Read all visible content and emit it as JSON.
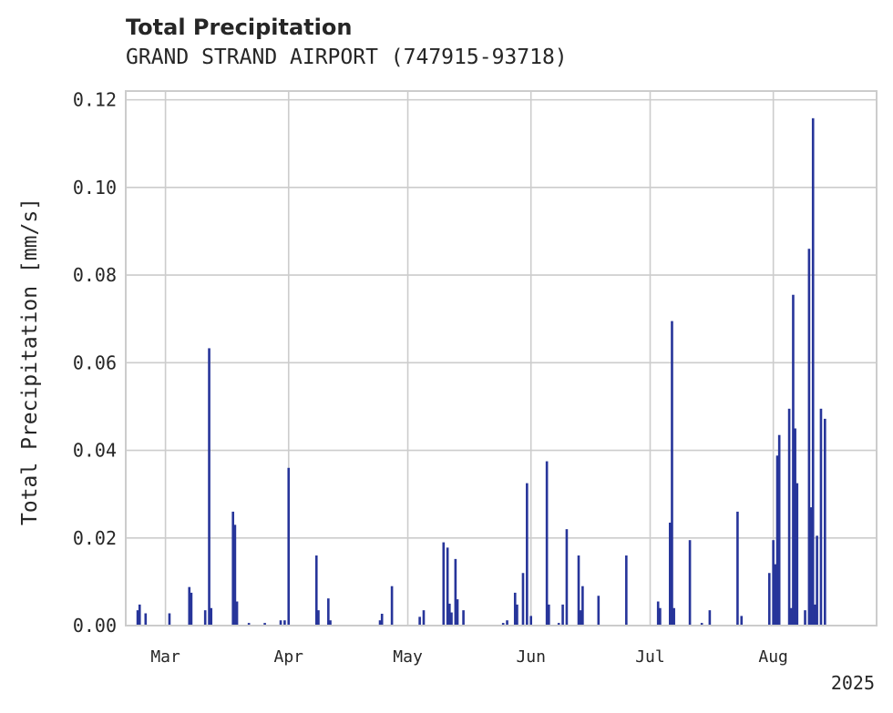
{
  "title": "Total Precipitation",
  "subtitle": "GRAND STRAND AIRPORT (747915-93718)",
  "chart_data": {
    "type": "bar",
    "title": "Total Precipitation",
    "subtitle": "GRAND STRAND AIRPORT (747915-93718)",
    "ylabel": "Total Precipitation [mm/s]",
    "xlabel": "",
    "ylim": [
      0,
      0.122
    ],
    "yticks": [
      "0.00",
      "0.02",
      "0.04",
      "0.06",
      "0.08",
      "0.10",
      "0.12"
    ],
    "xlim": [
      "2025-02-19",
      "2025-08-27"
    ],
    "xticks": [
      {
        "date": "2025-03-01",
        "label": "Mar"
      },
      {
        "date": "2025-04-01",
        "label": "Apr"
      },
      {
        "date": "2025-05-01",
        "label": "May"
      },
      {
        "date": "2025-06-01",
        "label": "Jun"
      },
      {
        "date": "2025-07-01",
        "label": "Jul"
      },
      {
        "date": "2025-08-01",
        "label": "Aug"
      }
    ],
    "x_offset_label": "2025",
    "grid": true,
    "bar_color": "#27359A",
    "points": [
      {
        "date": "2025-02-22",
        "value": 0.0035
      },
      {
        "date": "2025-02-22T12:00",
        "value": 0.0048
      },
      {
        "date": "2025-02-24",
        "value": 0.0028
      },
      {
        "date": "2025-03-02",
        "value": 0.0028
      },
      {
        "date": "2025-03-07",
        "value": 0.0088
      },
      {
        "date": "2025-03-07T12:00",
        "value": 0.0075
      },
      {
        "date": "2025-03-11",
        "value": 0.0035
      },
      {
        "date": "2025-03-12",
        "value": 0.0633
      },
      {
        "date": "2025-03-12T12:00",
        "value": 0.004
      },
      {
        "date": "2025-03-18",
        "value": 0.026
      },
      {
        "date": "2025-03-18T12:00",
        "value": 0.023
      },
      {
        "date": "2025-03-19",
        "value": 0.0055
      },
      {
        "date": "2025-03-22",
        "value": 0.0006
      },
      {
        "date": "2025-03-26",
        "value": 0.0006
      },
      {
        "date": "2025-03-30",
        "value": 0.0012
      },
      {
        "date": "2025-03-31",
        "value": 0.0012
      },
      {
        "date": "2025-04-01",
        "value": 0.036
      },
      {
        "date": "2025-04-08",
        "value": 0.016
      },
      {
        "date": "2025-04-08T12:00",
        "value": 0.0035
      },
      {
        "date": "2025-04-11",
        "value": 0.0062
      },
      {
        "date": "2025-04-11T12:00",
        "value": 0.0012
      },
      {
        "date": "2025-04-24",
        "value": 0.0012
      },
      {
        "date": "2025-04-24T12:00",
        "value": 0.0027
      },
      {
        "date": "2025-04-27",
        "value": 0.009
      },
      {
        "date": "2025-05-04",
        "value": 0.002
      },
      {
        "date": "2025-05-05",
        "value": 0.0035
      },
      {
        "date": "2025-05-10",
        "value": 0.019
      },
      {
        "date": "2025-05-11",
        "value": 0.0178
      },
      {
        "date": "2025-05-11T12:00",
        "value": 0.005
      },
      {
        "date": "2025-05-12",
        "value": 0.003
      },
      {
        "date": "2025-05-13",
        "value": 0.0152
      },
      {
        "date": "2025-05-13T12:00",
        "value": 0.006
      },
      {
        "date": "2025-05-15",
        "value": 0.0035
      },
      {
        "date": "2025-05-25",
        "value": 0.0006
      },
      {
        "date": "2025-05-26",
        "value": 0.0012
      },
      {
        "date": "2025-05-28",
        "value": 0.0075
      },
      {
        "date": "2025-05-28T12:00",
        "value": 0.0048
      },
      {
        "date": "2025-05-30",
        "value": 0.012
      },
      {
        "date": "2025-05-31",
        "value": 0.0325
      },
      {
        "date": "2025-06-01",
        "value": 0.0022
      },
      {
        "date": "2025-06-05",
        "value": 0.0375
      },
      {
        "date": "2025-06-05T12:00",
        "value": 0.0048
      },
      {
        "date": "2025-06-08",
        "value": 0.0006
      },
      {
        "date": "2025-06-09",
        "value": 0.0048
      },
      {
        "date": "2025-06-10",
        "value": 0.022
      },
      {
        "date": "2025-06-13",
        "value": 0.016
      },
      {
        "date": "2025-06-13T12:00",
        "value": 0.0035
      },
      {
        "date": "2025-06-14",
        "value": 0.009
      },
      {
        "date": "2025-06-18",
        "value": 0.0068
      },
      {
        "date": "2025-06-25",
        "value": 0.016
      },
      {
        "date": "2025-07-03",
        "value": 0.0055
      },
      {
        "date": "2025-07-03T12:00",
        "value": 0.004
      },
      {
        "date": "2025-07-06",
        "value": 0.0235
      },
      {
        "date": "2025-07-06T12:00",
        "value": 0.0695
      },
      {
        "date": "2025-07-07",
        "value": 0.004
      },
      {
        "date": "2025-07-11",
        "value": 0.0195
      },
      {
        "date": "2025-07-14",
        "value": 0.0006
      },
      {
        "date": "2025-07-16",
        "value": 0.0035
      },
      {
        "date": "2025-07-23",
        "value": 0.026
      },
      {
        "date": "2025-07-24",
        "value": 0.0022
      },
      {
        "date": "2025-07-31",
        "value": 0.012
      },
      {
        "date": "2025-08-01",
        "value": 0.0195
      },
      {
        "date": "2025-08-01T12:00",
        "value": 0.014
      },
      {
        "date": "2025-08-02",
        "value": 0.0388
      },
      {
        "date": "2025-08-02T12:00",
        "value": 0.0435
      },
      {
        "date": "2025-08-05",
        "value": 0.0495
      },
      {
        "date": "2025-08-05T12:00",
        "value": 0.004
      },
      {
        "date": "2025-08-06",
        "value": 0.0755
      },
      {
        "date": "2025-08-06T12:00",
        "value": 0.045
      },
      {
        "date": "2025-08-07",
        "value": 0.0325
      },
      {
        "date": "2025-08-09",
        "value": 0.0035
      },
      {
        "date": "2025-08-10",
        "value": 0.086
      },
      {
        "date": "2025-08-10T12:00",
        "value": 0.027
      },
      {
        "date": "2025-08-11",
        "value": 0.1158
      },
      {
        "date": "2025-08-11T12:00",
        "value": 0.0048
      },
      {
        "date": "2025-08-12",
        "value": 0.0205
      },
      {
        "date": "2025-08-13",
        "value": 0.0495
      },
      {
        "date": "2025-08-14",
        "value": 0.0472
      }
    ]
  }
}
